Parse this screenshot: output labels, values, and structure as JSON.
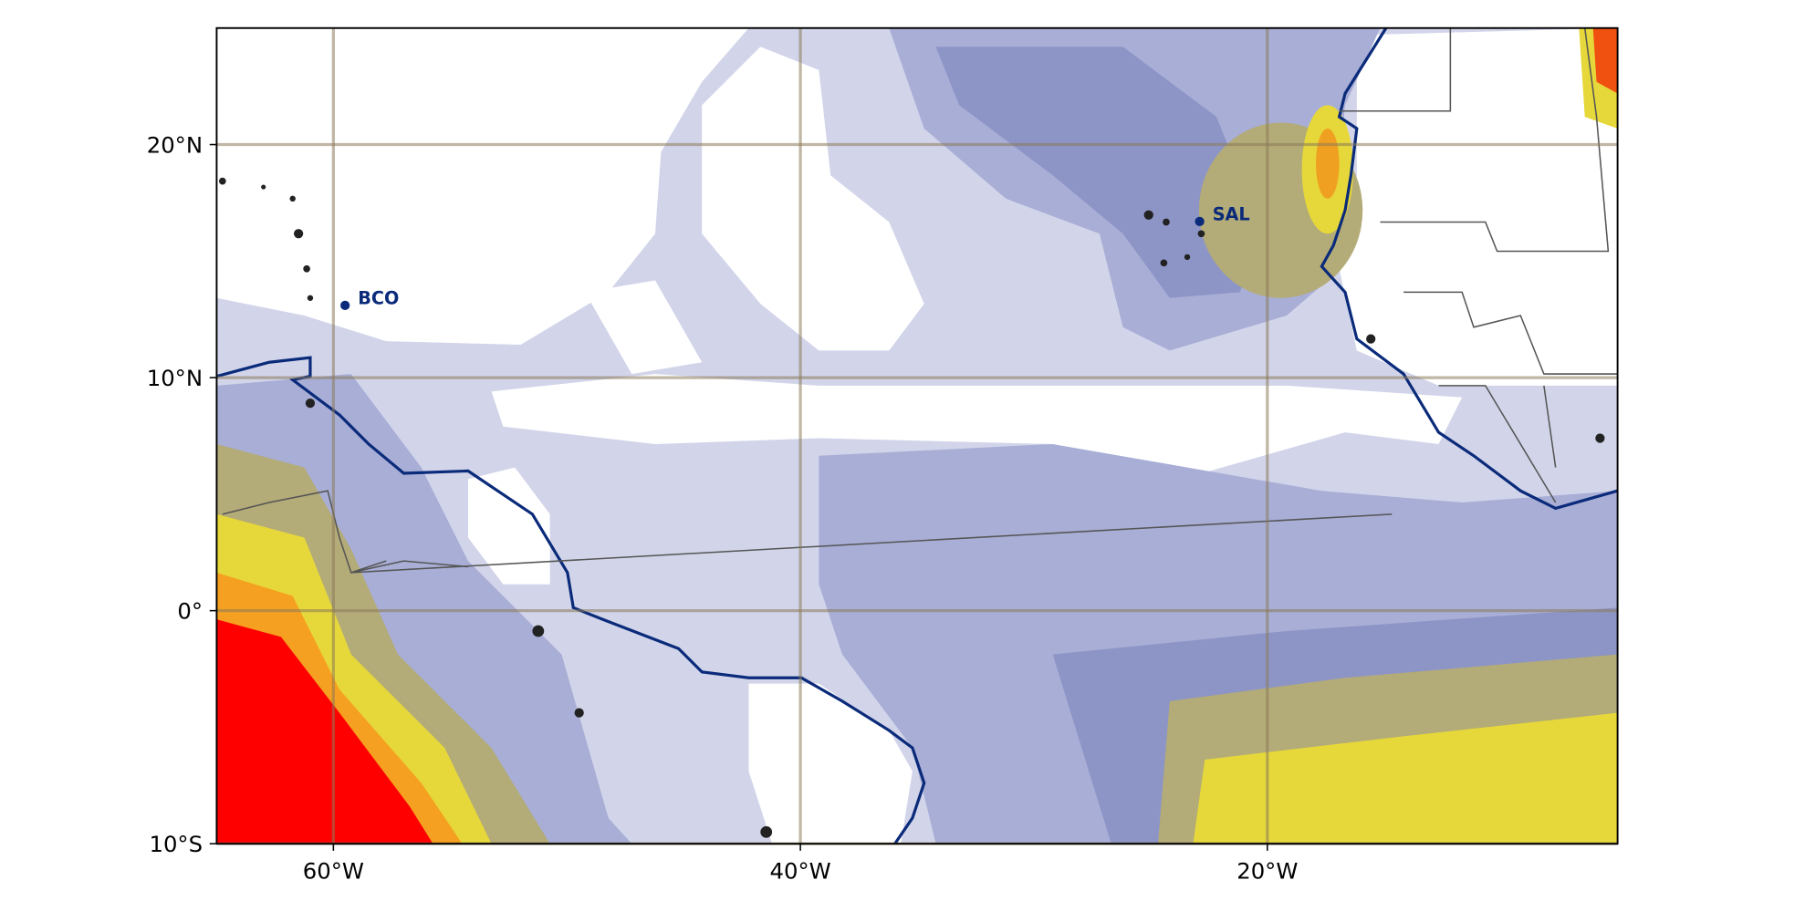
{
  "map": {
    "type": "map",
    "xlim": [
      -65,
      -5
    ],
    "ylim": [
      -10,
      25
    ],
    "xticks": [
      {
        "value": -60,
        "label": "60°W"
      },
      {
        "value": -40,
        "label": "40°W"
      },
      {
        "value": -20,
        "label": "20°W"
      }
    ],
    "yticks": [
      {
        "value": -10,
        "label": "10°S"
      },
      {
        "value": 0,
        "label": "0°"
      },
      {
        "value": 10,
        "label": "10°N"
      },
      {
        "value": 20,
        "label": "20°N"
      }
    ],
    "grid": true,
    "stations": [
      {
        "name": "BCO",
        "lon": -59.5,
        "lat": 13.1,
        "color": "#0a2a7a"
      },
      {
        "name": "SAL",
        "lon": -22.9,
        "lat": 16.7,
        "color": "#0a2a7a"
      }
    ]
  }
}
